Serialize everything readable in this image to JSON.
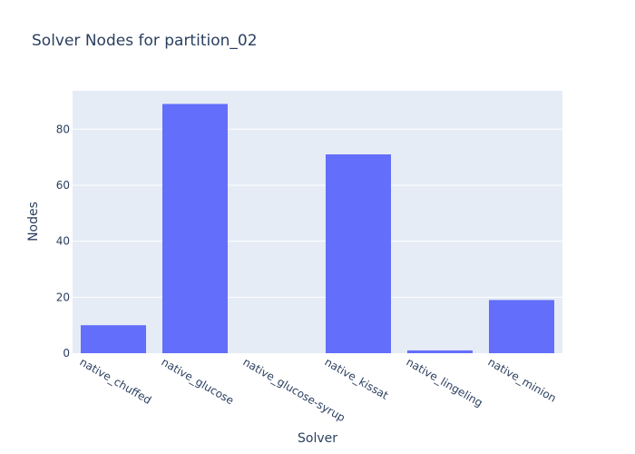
{
  "chart_data": {
    "type": "bar",
    "title": "Solver Nodes for partition_02",
    "xlabel": "Solver",
    "ylabel": "Nodes",
    "categories": [
      "native_chuffed",
      "native_glucose",
      "native_glucose-syrup",
      "native_kissat",
      "native_lingeling",
      "native_minion"
    ],
    "values": [
      10,
      89,
      0,
      71,
      1,
      19
    ],
    "ylim": [
      0,
      93.7
    ],
    "yticks": [
      0,
      20,
      40,
      60,
      80
    ],
    "grid": true,
    "bar_color": "#636efa",
    "plot_bg": "#e5ecf6",
    "tick_label_rotation": 30
  }
}
